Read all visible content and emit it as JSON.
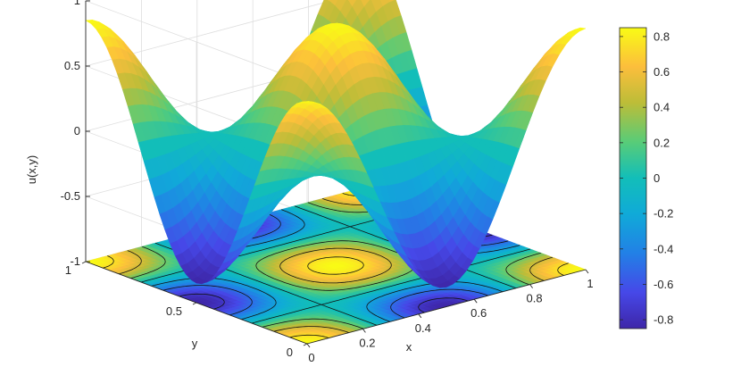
{
  "chart_data": {
    "type": "surface",
    "xlabel": "x",
    "ylabel": "y",
    "zlabel": "u(x,y)",
    "xlim": [
      0,
      1
    ],
    "ylim": [
      0,
      1
    ],
    "zlim": [
      -1,
      1
    ],
    "x_ticks": [
      "0",
      "0.2",
      "0.4",
      "0.6",
      "0.8",
      "1"
    ],
    "y_ticks": [
      "0",
      "0.5",
      "1"
    ],
    "z_ticks": [
      "-1",
      "-0.5",
      "0",
      "0.5",
      "1"
    ],
    "colorbar": {
      "range": [
        -0.85,
        0.85
      ],
      "ticks": [
        "0.8",
        "0.6",
        "0.4",
        "0.2",
        "0",
        "-0.2",
        "-0.4",
        "-0.6",
        "-0.8"
      ],
      "colormap": "parula"
    },
    "function": "u(x,y) = 0.85 * cos(2*pi*x) * cos(2*pi*y)",
    "contour_projection": "z = -1 plane",
    "grid": true
  }
}
